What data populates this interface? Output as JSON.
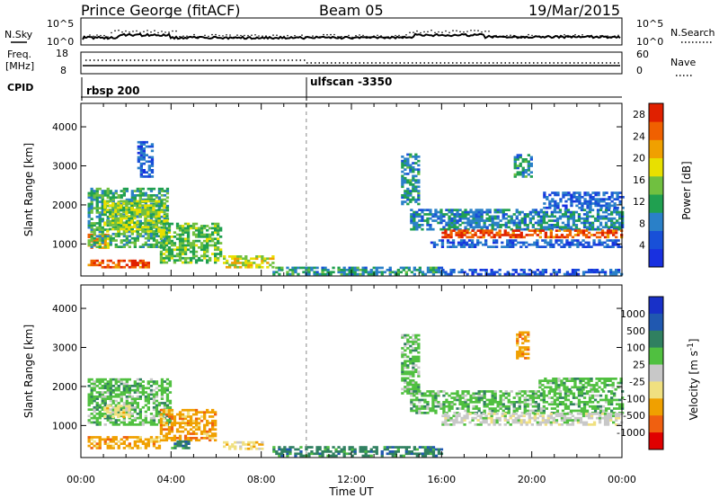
{
  "header": {
    "station": "Prince George (fitACF)",
    "beam": "Beam 05",
    "date": "19/Mar/2015"
  },
  "top_panels": {
    "nsky_label": "N.Sky",
    "nsearch_label": "N.Search",
    "nsky_ticks": [
      "10^5",
      "10^0"
    ],
    "nsearch_ticks": [
      "10^5",
      "10^0"
    ],
    "freq_label_1": "Freq.",
    "freq_label_2": "[MHz]",
    "freq_ticks": [
      "18",
      "8"
    ],
    "nave_label": "Nave",
    "nave_ticks": [
      "60",
      "0"
    ],
    "cpid_label": "CPID",
    "cpid_segments": [
      {
        "name": "rbsp 200",
        "start_hr": 0
      },
      {
        "name": "ulfscan -3350",
        "start_hr": 10
      }
    ]
  },
  "chart_data": [
    {
      "type": "heatmap",
      "title": "",
      "xlabel": "Time UT",
      "ylabel": "Slant Range [km]",
      "xlim": [
        0,
        24
      ],
      "ylim": [
        180,
        4600
      ],
      "x_ticks": [
        "00:00",
        "04:00",
        "08:00",
        "12:00",
        "16:00",
        "20:00",
        "00:00"
      ],
      "y_ticks": [
        1000,
        2000,
        3000,
        4000
      ],
      "colorbar": {
        "label": "Power [dB]",
        "ticks": [
          4,
          8,
          12,
          16,
          20,
          24,
          28
        ],
        "range": [
          0,
          30
        ],
        "colors": [
          "#1830e0",
          "#1850d8",
          "#2a80c8",
          "#20a050",
          "#70c040",
          "#e8e000",
          "#f0a000",
          "#f06000",
          "#e02000"
        ]
      },
      "blobs": [
        {
          "t0": 0.3,
          "t1": 1.2,
          "r0": 880,
          "r1": 1250,
          "value": 22
        },
        {
          "t0": 0.3,
          "t1": 3.9,
          "r0": 900,
          "r1": 2400,
          "value": 12
        },
        {
          "t0": 1.0,
          "t1": 3.8,
          "r0": 1300,
          "r1": 2100,
          "value": 16
        },
        {
          "t0": 2.5,
          "t1": 3.2,
          "r0": 2700,
          "r1": 3600,
          "value": 6
        },
        {
          "t0": 0.3,
          "t1": 3.0,
          "r0": 380,
          "r1": 560,
          "value": 26
        },
        {
          "t0": 3.5,
          "t1": 6.2,
          "r0": 500,
          "r1": 1500,
          "value": 14
        },
        {
          "t0": 6.3,
          "t1": 8.5,
          "r0": 380,
          "r1": 700,
          "value": 18
        },
        {
          "t0": 8.5,
          "t1": 16.0,
          "r0": 200,
          "r1": 420,
          "value": 10
        },
        {
          "t0": 14.2,
          "t1": 15.0,
          "r0": 2000,
          "r1": 3300,
          "value": 10
        },
        {
          "t0": 14.6,
          "t1": 24.0,
          "r0": 1350,
          "r1": 1900,
          "value": 9
        },
        {
          "t0": 16.0,
          "t1": 24.0,
          "r0": 1150,
          "r1": 1350,
          "value": 26
        },
        {
          "t0": 15.5,
          "t1": 24.0,
          "r0": 900,
          "r1": 1100,
          "value": 6
        },
        {
          "t0": 19.2,
          "t1": 20.0,
          "r0": 2700,
          "r1": 3300,
          "value": 10
        },
        {
          "t0": 20.5,
          "t1": 24.0,
          "r0": 1900,
          "r1": 2300,
          "value": 6
        },
        {
          "t0": 16.0,
          "t1": 24.0,
          "r0": 200,
          "r1": 360,
          "value": 5
        }
      ]
    },
    {
      "type": "heatmap",
      "title": "",
      "xlabel": "Time UT",
      "ylabel": "Slant Range [km]",
      "xlim": [
        0,
        24
      ],
      "ylim": [
        180,
        4600
      ],
      "x_ticks": [
        "00:00",
        "04:00",
        "08:00",
        "12:00",
        "16:00",
        "20:00",
        "00:00"
      ],
      "y_ticks": [
        1000,
        2000,
        3000,
        4000
      ],
      "colorbar": {
        "label": "Velocity [m s^-1]",
        "ticks": [
          "1000",
          "500",
          "100",
          "25",
          "-25",
          "-100",
          "-500",
          "-1000"
        ],
        "colors": [
          "#1830c8",
          "#2058b0",
          "#308060",
          "#50c040",
          "#c8c8c8",
          "#f0e080",
          "#f0a000",
          "#f06010",
          "#e00000"
        ]
      },
      "blobs": [
        {
          "t0": 0.3,
          "t1": 4.0,
          "r0": 1000,
          "r1": 2200,
          "value": "25"
        },
        {
          "t0": 0.3,
          "t1": 3.5,
          "r0": 400,
          "r1": 700,
          "value": "-500"
        },
        {
          "t0": 1.0,
          "t1": 2.2,
          "r0": 1200,
          "r1": 1500,
          "value": "-100"
        },
        {
          "t0": 3.5,
          "t1": 6.0,
          "r0": 600,
          "r1": 1400,
          "value": "-500"
        },
        {
          "t0": 4.0,
          "t1": 4.8,
          "r0": 400,
          "r1": 600,
          "value": "100"
        },
        {
          "t0": 6.3,
          "t1": 8.0,
          "r0": 380,
          "r1": 600,
          "value": "-100"
        },
        {
          "t0": 8.5,
          "t1": 16.0,
          "r0": 200,
          "r1": 450,
          "value": "100"
        },
        {
          "t0": 14.2,
          "t1": 15.0,
          "r0": 1800,
          "r1": 3300,
          "value": "25"
        },
        {
          "t0": 14.6,
          "t1": 24.0,
          "r0": 1300,
          "r1": 1900,
          "value": "25"
        },
        {
          "t0": 16.0,
          "t1": 24.0,
          "r0": 1000,
          "r1": 1300,
          "value": "-25"
        },
        {
          "t0": 19.3,
          "t1": 19.9,
          "r0": 2700,
          "r1": 3400,
          "value": "-500"
        },
        {
          "t0": 20.3,
          "t1": 24.0,
          "r0": 1900,
          "r1": 2200,
          "value": "25"
        }
      ]
    }
  ]
}
